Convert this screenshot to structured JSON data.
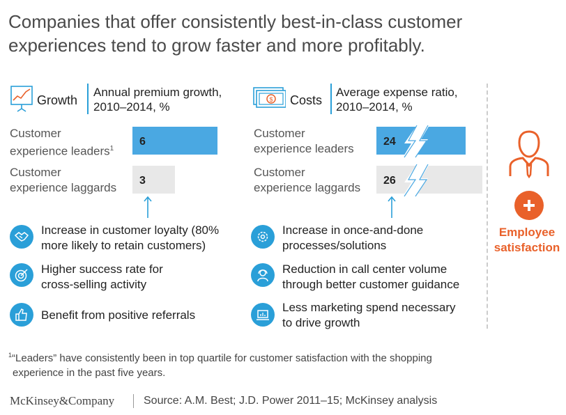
{
  "title": "Companies that offer consistently best-in-class customer experiences tend to grow faster and more profitably.",
  "growth": {
    "label": "Growth",
    "metric_line1": "Annual premium growth,",
    "metric_line2": "2010–2014, %",
    "icon": "growth-chart-icon",
    "rows": [
      {
        "label_line1": "Customer",
        "label_line2": "experience leaders",
        "footnote_mark": "1"
      },
      {
        "label_line1": "Customer",
        "label_line2": "experience laggards",
        "footnote_mark": ""
      }
    ],
    "bullets": [
      {
        "icon": "handshake-icon",
        "line1": "Increase in customer loyalty (80%",
        "line2": "more likely to retain customers)"
      },
      {
        "icon": "target-icon",
        "line1": "Higher success rate for",
        "line2": "cross-selling activity"
      },
      {
        "icon": "thumbs-up-icon",
        "line1": "Benefit from positive referrals",
        "line2": ""
      }
    ]
  },
  "costs": {
    "label": "Costs",
    "metric_line1": "Average expense ratio,",
    "metric_line2": "2010–2014, %",
    "icon": "money-bill-icon",
    "rows": [
      {
        "label_line1": "Customer",
        "label_line2": "experience leaders"
      },
      {
        "label_line1": "Customer",
        "label_line2": "experience laggards"
      }
    ],
    "bullets": [
      {
        "icon": "gear-icon",
        "line1": "Increase in once-and-done",
        "line2": "processes/solutions"
      },
      {
        "icon": "call-agent-icon",
        "line1": "Reduction in call center volume",
        "line2": "through better customer guidance"
      },
      {
        "icon": "laptop-chart-icon",
        "line1": "Less marketing spend necessary",
        "line2": "to drive growth"
      }
    ]
  },
  "employee": {
    "icon": "employee-icon",
    "plus_icon": "plus-icon",
    "line1": "Employee",
    "line2": "satisfaction"
  },
  "chart_data": [
    {
      "type": "bar",
      "title": "Annual premium growth, 2010–2014, %",
      "categories": [
        "Customer experience leaders",
        "Customer experience laggards"
      ],
      "values": [
        6,
        3
      ],
      "xlim": [
        0,
        6
      ],
      "colors": [
        "#4aa8e2",
        "#e8e8e8"
      ]
    },
    {
      "type": "bar",
      "title": "Average expense ratio, 2010–2014, %",
      "categories": [
        "Customer experience leaders",
        "Customer experience laggards"
      ],
      "values": [
        24,
        26
      ],
      "axis_break": true,
      "colors": [
        "#4aa8e2",
        "#e8e8e8"
      ]
    }
  ],
  "footnote": {
    "mark": "1",
    "line1": "“Leaders” have consistently been in top quartile for customer satisfaction with the shopping",
    "line2": "experience in the past five years."
  },
  "brand": "McKinsey&Company",
  "source": "Source: A.M. Best; J.D. Power 2011–15; McKinsey analysis",
  "colors": {
    "accent": "#2a9fd8",
    "bar_leader": "#4aa8e2",
    "bar_laggard": "#e8e8e8",
    "orange": "#e9612a"
  }
}
